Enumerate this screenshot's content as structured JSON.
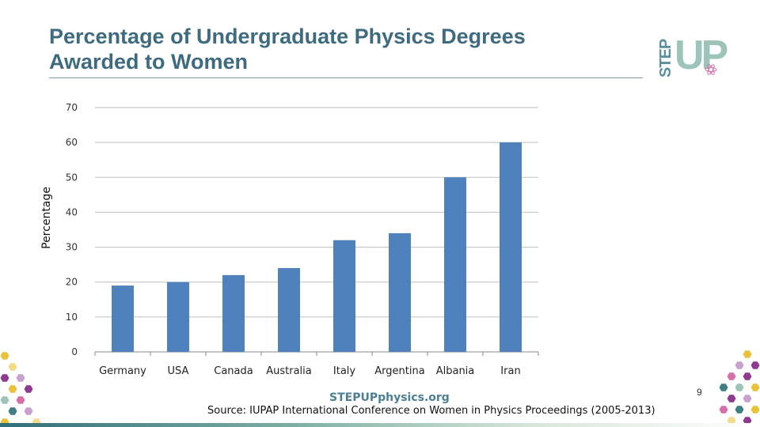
{
  "slide": {
    "title": "Percentage of Undergraduate Physics Degrees Awarded to Women",
    "logo_text_step": "STEP",
    "logo_text_up": "UP",
    "site_name": "STEPUPphysics.org",
    "source": "Source: IUPAP International Conference on Women in Physics Proceedings (2005-2013)",
    "page_number": "9"
  },
  "colors": {
    "title": "#3e6b80",
    "bar": "#4f81bd",
    "gridline": "#bfbfbf",
    "axis": "#888888",
    "hex_palette": [
      "#e8c23a",
      "#8e3a8e",
      "#c9a0cf",
      "#3f7e84",
      "#9cc4b9",
      "#f2dc8c",
      "#d76fa8"
    ]
  },
  "chart_data": {
    "type": "bar",
    "title": "",
    "xlabel": "",
    "ylabel": "Percentage",
    "categories": [
      "Germany",
      "USA",
      "Canada",
      "Australia",
      "Italy",
      "Argentina",
      "Albania",
      "Iran"
    ],
    "values": [
      19,
      20,
      22,
      24,
      32,
      34,
      50,
      60
    ],
    "ylim": [
      0,
      70
    ],
    "yticks": [
      0,
      10,
      20,
      30,
      40,
      50,
      60,
      70
    ],
    "grid": true,
    "legend": "none"
  }
}
